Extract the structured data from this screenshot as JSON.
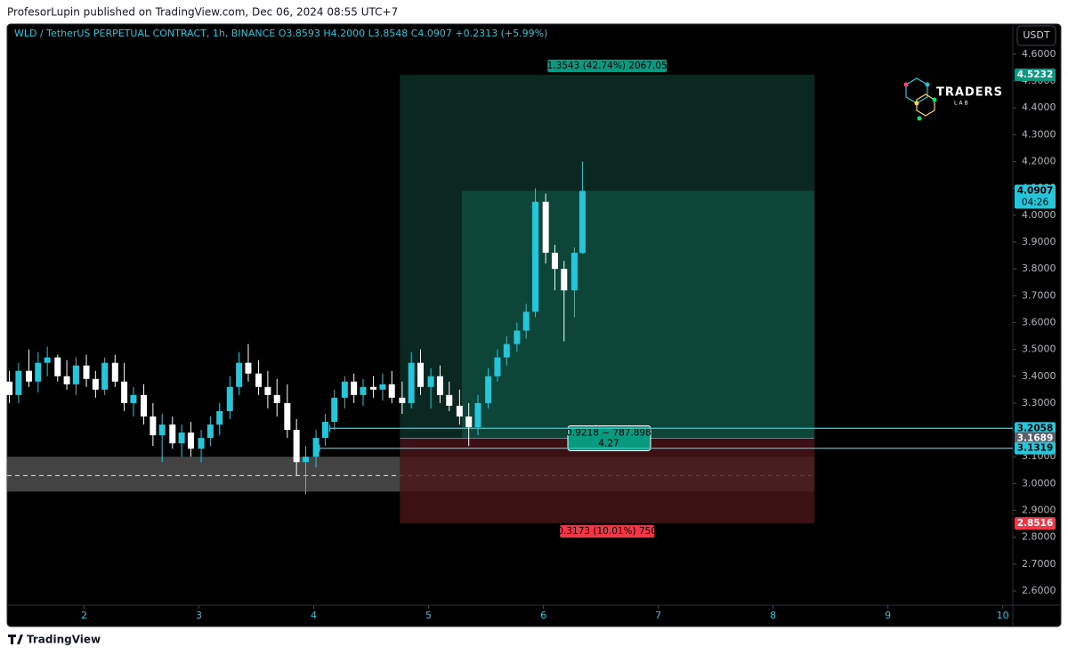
{
  "header": {
    "text": "ProfesorLupin published on TradingView.com, Dec 06, 2024 08:55 UTC+7"
  },
  "footer": {
    "text": "TradingView"
  },
  "logo": {
    "title": "TRADERS",
    "subtitle": "LAB"
  },
  "chart_data": {
    "type": "candlestick",
    "legend": "WLD / TetherUS PERPETUAL CONTRACT, 1h, BINANCE  O3.8593  H4.2000  L3.8548  C4.0907  +0.2313 (+5.99%)",
    "currency": "USDT",
    "up_color": "#26c6da",
    "down_color": "#ffffff",
    "x": [
      1.35,
      1.43,
      1.52,
      1.6,
      1.68,
      1.77,
      1.85,
      1.93,
      2.02,
      2.1,
      2.18,
      2.27,
      2.35,
      2.43,
      2.52,
      2.6,
      2.68,
      2.77,
      2.85,
      2.93,
      3.02,
      3.1,
      3.18,
      3.27,
      3.35,
      3.43,
      3.52,
      3.6,
      3.68,
      3.77,
      3.85,
      3.93,
      4.02,
      4.1,
      4.18,
      4.27,
      4.35,
      4.43,
      4.52,
      4.6,
      4.68,
      4.77,
      4.85,
      4.93,
      5.02,
      5.1,
      5.18,
      5.27,
      5.35,
      5.43,
      5.52,
      5.6,
      5.68,
      5.77,
      5.85,
      5.93,
      6.02,
      6.1,
      6.18,
      6.27,
      6.34
    ],
    "open": [
      3.38,
      3.33,
      3.42,
      3.38,
      3.45,
      3.47,
      3.4,
      3.37,
      3.44,
      3.39,
      3.35,
      3.45,
      3.38,
      3.3,
      3.33,
      3.25,
      3.18,
      3.22,
      3.15,
      3.19,
      3.13,
      3.17,
      3.22,
      3.27,
      3.36,
      3.45,
      3.41,
      3.36,
      3.33,
      3.3,
      3.2,
      3.08,
      3.1,
      3.17,
      3.23,
      3.32,
      3.38,
      3.33,
      3.36,
      3.35,
      3.37,
      3.32,
      3.3,
      3.45,
      3.36,
      3.4,
      3.33,
      3.29,
      3.25,
      3.21,
      3.3,
      3.4,
      3.47,
      3.52,
      3.57,
      3.64,
      4.05,
      3.86,
      3.8,
      3.72,
      3.8593
    ],
    "high": [
      3.42,
      3.45,
      3.5,
      3.49,
      3.51,
      3.48,
      3.46,
      3.47,
      3.48,
      3.42,
      3.47,
      3.48,
      3.45,
      3.36,
      3.37,
      3.3,
      3.26,
      3.25,
      3.22,
      3.23,
      3.2,
      3.25,
      3.3,
      3.4,
      3.49,
      3.52,
      3.46,
      3.42,
      3.39,
      3.37,
      3.24,
      3.14,
      3.2,
      3.26,
      3.35,
      3.4,
      3.41,
      3.39,
      3.4,
      3.41,
      3.42,
      3.38,
      3.49,
      3.5,
      3.43,
      3.44,
      3.38,
      3.35,
      3.3,
      3.33,
      3.43,
      3.5,
      3.55,
      3.6,
      3.67,
      4.1,
      4.08,
      3.89,
      3.83,
      3.88,
      4.2
    ],
    "low": [
      3.3,
      3.3,
      3.36,
      3.34,
      3.4,
      3.38,
      3.35,
      3.33,
      3.36,
      3.32,
      3.33,
      3.36,
      3.27,
      3.25,
      3.22,
      3.14,
      3.08,
      3.13,
      3.1,
      3.1,
      3.08,
      3.14,
      3.18,
      3.24,
      3.33,
      3.38,
      3.33,
      3.28,
      3.25,
      3.17,
      3.03,
      2.96,
      3.06,
      3.14,
      3.2,
      3.28,
      3.3,
      3.29,
      3.32,
      3.31,
      3.3,
      3.26,
      3.28,
      3.33,
      3.28,
      3.3,
      3.27,
      3.22,
      3.14,
      3.18,
      3.28,
      3.38,
      3.44,
      3.49,
      3.54,
      3.62,
      3.82,
      3.72,
      3.53,
      3.62,
      3.8548
    ],
    "close": [
      3.33,
      3.42,
      3.38,
      3.45,
      3.47,
      3.4,
      3.37,
      3.44,
      3.39,
      3.35,
      3.45,
      3.38,
      3.3,
      3.33,
      3.25,
      3.18,
      3.22,
      3.15,
      3.19,
      3.13,
      3.17,
      3.22,
      3.27,
      3.36,
      3.45,
      3.41,
      3.36,
      3.33,
      3.3,
      3.2,
      3.08,
      3.1,
      3.17,
      3.23,
      3.32,
      3.38,
      3.33,
      3.36,
      3.35,
      3.37,
      3.32,
      3.3,
      3.45,
      3.36,
      3.4,
      3.33,
      3.29,
      3.25,
      3.21,
      3.3,
      3.4,
      3.47,
      3.52,
      3.57,
      3.64,
      4.05,
      3.86,
      3.8,
      3.72,
      3.86,
      4.0907
    ],
    "xlim": [
      1.33,
      10.08
    ],
    "ylim": [
      2.547,
      4.709
    ],
    "xticks": [
      2,
      3,
      4,
      5,
      6,
      7,
      8,
      9,
      10
    ],
    "yticks": [
      {
        "value": 2.6,
        "label": "2.6000"
      },
      {
        "value": 2.7,
        "label": "2.7000"
      },
      {
        "value": 2.8,
        "label": "2.8000"
      },
      {
        "value": 2.9,
        "label": "2.9000"
      },
      {
        "value": 3.0,
        "label": "3.0000"
      },
      {
        "value": 3.1,
        "label": "3.1000"
      },
      {
        "value": 3.2,
        "label": "3.2000"
      },
      {
        "value": 3.3,
        "label": "3.3000"
      },
      {
        "value": 3.4,
        "label": "3.4000"
      },
      {
        "value": 3.5,
        "label": "3.5000"
      },
      {
        "value": 3.6,
        "label": "3.6000"
      },
      {
        "value": 3.7,
        "label": "3.7000"
      },
      {
        "value": 3.8,
        "label": "3.8000"
      },
      {
        "value": 3.9,
        "label": "3.9000"
      },
      {
        "value": 4.0,
        "label": "4.0000"
      },
      {
        "value": 4.1,
        "label": "4.1000"
      },
      {
        "value": 4.2,
        "label": "4.2000"
      },
      {
        "value": 4.3,
        "label": "4.3000"
      },
      {
        "value": 4.4,
        "label": "4.4000"
      },
      {
        "value": 4.5,
        "label": "4.5000"
      },
      {
        "value": 4.6,
        "label": "4.6000"
      }
    ],
    "zone": {
      "top": 3.1,
      "bottom": 2.97,
      "mid": 3.03,
      "end": 8.36,
      "color": "#5a5a5a"
    },
    "levels": [
      {
        "value": 3.2058,
        "start": 4.14,
        "color": "#26c6da"
      },
      {
        "value": 3.1319,
        "start": 4.05,
        "color": "#26c6da"
      }
    ],
    "position": {
      "start": 4.75,
      "end": 8.36,
      "entry": 3.1689,
      "target": 4.5232,
      "stop": 2.8516,
      "current_start": 5.29,
      "current": 4.0907,
      "target_label": "1.3543 (42.74%) 2067.05",
      "center_label": "0.9218 ~ 787.898",
      "ratio_label": "4.27",
      "stop_label": "0.3173 (10.01%) 750"
    },
    "price_tags": [
      {
        "value": 4.5232,
        "color": "#089981"
      },
      {
        "value": 4.0907,
        "color": "#26c6da",
        "countdown": "04:26"
      },
      {
        "value": 3.2058,
        "color": "#26c6da"
      },
      {
        "value": 3.1689,
        "color": "#5d606b"
      },
      {
        "value": 3.1319,
        "color": "#26c6da"
      },
      {
        "value": 2.8516,
        "color": "#f23645"
      }
    ]
  }
}
